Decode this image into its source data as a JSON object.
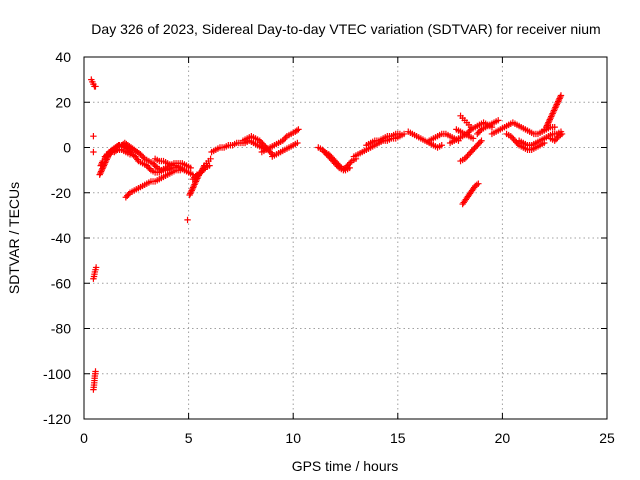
{
  "chart_data": {
    "type": "scatter",
    "title": "Day 326 of 2023, Sidereal Day-to-day VTEC variation (SDTVAR) for receiver nium",
    "xlabel": "GPS time / hours",
    "ylabel": "SDTVAR / TECUs",
    "xlim": [
      0,
      25
    ],
    "ylim": [
      -120,
      40
    ],
    "xticks": [
      0,
      5,
      10,
      15,
      20,
      25
    ],
    "yticks": [
      -120,
      -100,
      -80,
      -60,
      -40,
      -20,
      0,
      20,
      40
    ],
    "grid": true,
    "marker": "+",
    "color": "#ff0000",
    "series": [
      {
        "name": "SDTVAR",
        "segments": [
          {
            "x": [
              0.35,
              0.4,
              0.45,
              0.5,
              0.55
            ],
            "y": [
              30,
              29,
              28,
              27,
              27
            ]
          },
          {
            "x": [
              0.45
            ],
            "y": [
              5
            ]
          },
          {
            "x": [
              0.45
            ],
            "y": [
              -2
            ]
          },
          {
            "x": [
              0.45,
              0.48,
              0.5,
              0.52,
              0.55,
              0.58
            ],
            "y": [
              -58,
              -57,
              -56,
              -55,
              -54,
              -53
            ]
          },
          {
            "x": [
              0.45,
              0.48,
              0.5,
              0.52,
              0.55
            ],
            "y": [
              -107,
              -105,
              -103,
              -101,
              -99
            ]
          },
          {
            "x": [
              0.75,
              0.85,
              0.95,
              1.05,
              1.15,
              1.25,
              1.4,
              1.55,
              1.7,
              1.85,
              2.0,
              2.15,
              2.3,
              2.45,
              2.6,
              2.8,
              3.0,
              3.2,
              3.4,
              3.6,
              3.8,
              4.0,
              4.2,
              4.4,
              4.6,
              4.8,
              5.0,
              5.2
            ],
            "y": [
              -12,
              -10,
              -8,
              -6,
              -4,
              -3,
              -1,
              0,
              1,
              1,
              0,
              -1,
              -3,
              -4,
              -6,
              -7,
              -8,
              -10,
              -11,
              -11,
              -10,
              -10,
              -9,
              -9,
              -9,
              -10,
              -11,
              -12
            ]
          },
          {
            "x": [
              0.8,
              0.9,
              1.0,
              1.1,
              1.2,
              1.35,
              1.5,
              1.65,
              1.8,
              1.95,
              2.1,
              2.25,
              2.4,
              2.55,
              2.7,
              2.9,
              3.1,
              3.3,
              3.5,
              3.7,
              3.9,
              4.1,
              4.3,
              4.5,
              4.7,
              4.9,
              5.1
            ],
            "y": [
              -8,
              -6,
              -5,
              -3,
              -2,
              -1,
              0,
              1,
              1,
              2,
              1,
              0,
              -1,
              -2,
              -3,
              -5,
              -6,
              -7,
              -9,
              -10,
              -9,
              -8,
              -7,
              -7,
              -7,
              -8,
              -9
            ]
          },
          {
            "x": [
              1.0,
              1.15,
              1.3,
              1.45,
              1.6,
              1.8,
              2.0,
              2.2
            ],
            "y": [
              -4,
              -3,
              -2,
              -2,
              -1,
              -1,
              -2,
              -3
            ]
          },
          {
            "x": [
              2.0,
              2.2,
              2.4,
              2.6,
              2.8,
              3.0,
              3.2,
              3.4,
              3.6,
              3.8,
              4.0,
              4.2,
              4.4,
              4.6
            ],
            "y": [
              -22,
              -20,
              -19,
              -18,
              -17,
              -16,
              -15,
              -15,
              -14,
              -13,
              -12,
              -11,
              -10,
              -10
            ]
          },
          {
            "x": [
              3.4,
              3.6,
              3.8,
              4.0,
              4.2,
              4.4,
              4.6,
              4.8
            ],
            "y": [
              -5,
              -6,
              -6,
              -7,
              -8,
              -8,
              -9,
              -10
            ]
          },
          {
            "x": [
              5.05,
              5.15,
              5.25,
              5.35,
              5.45,
              5.55,
              5.65,
              5.75,
              5.85,
              5.95,
              6.05
            ],
            "y": [
              -21,
              -19,
              -17,
              -15,
              -13,
              -11,
              -10,
              -8,
              -7,
              -6,
              -5
            ]
          },
          {
            "x": [
              5.2,
              5.4,
              5.6,
              5.8,
              6.0
            ],
            "y": [
              -14,
              -12,
              -11,
              -9,
              -8
            ]
          },
          {
            "x": [
              4.95
            ],
            "y": [
              -32
            ]
          },
          {
            "x": [
              6.1,
              6.3,
              6.5,
              6.7,
              6.9,
              7.1,
              7.3,
              7.5,
              7.7,
              7.9,
              8.1,
              8.3,
              8.5,
              8.7
            ],
            "y": [
              -2,
              -1,
              0,
              0,
              1,
              1,
              2,
              2,
              2,
              3,
              2,
              1,
              0,
              -1
            ]
          },
          {
            "x": [
              7.6,
              7.8,
              8.0,
              8.2,
              8.4,
              8.6,
              8.8,
              9.0
            ],
            "y": [
              3,
              4,
              5,
              4,
              3,
              1,
              -1,
              -3
            ]
          },
          {
            "x": [
              8.5,
              8.7,
              8.9,
              9.1,
              9.3,
              9.5,
              9.7,
              9.9,
              10.1,
              10.25
            ],
            "y": [
              -2,
              -1,
              0,
              1,
              2,
              3,
              5,
              6,
              7,
              8
            ]
          },
          {
            "x": [
              9.0,
              9.2,
              9.4,
              9.6,
              9.8,
              10.0,
              10.2
            ],
            "y": [
              -4,
              -3,
              -2,
              -1,
              0,
              1,
              2
            ]
          },
          {
            "x": [
              11.2,
              11.4,
              11.6,
              11.8,
              12.0,
              12.2,
              12.4,
              12.6,
              12.8,
              13.0
            ],
            "y": [
              0,
              -1,
              -3,
              -5,
              -7,
              -9,
              -10,
              -8,
              -6,
              -5
            ]
          },
          {
            "x": [
              11.5,
              11.7,
              11.9,
              12.1,
              12.3,
              12.5,
              12.7
            ],
            "y": [
              -2,
              -3,
              -5,
              -7,
              -9,
              -10,
              -9
            ]
          },
          {
            "x": [
              12.9,
              13.1,
              13.3,
              13.5,
              13.7,
              13.9,
              14.1,
              14.3,
              14.5,
              14.7,
              14.9,
              15.1,
              15.3
            ],
            "y": [
              -4,
              -3,
              -2,
              -1,
              0,
              1,
              2,
              3,
              3,
              4,
              4,
              5,
              6
            ]
          },
          {
            "x": [
              13.5,
              13.7,
              13.9,
              14.1,
              14.3,
              14.5,
              14.7,
              14.9,
              15.1
            ],
            "y": [
              1,
              2,
              3,
              3,
              4,
              5,
              5,
              6,
              6
            ]
          },
          {
            "x": [
              15.5,
              15.7,
              15.9,
              16.1,
              16.3,
              16.5,
              16.7,
              16.9,
              17.1
            ],
            "y": [
              7,
              6,
              5,
              4,
              3,
              2,
              1,
              0,
              1
            ]
          },
          {
            "x": [
              16.5,
              16.7,
              16.9,
              17.1,
              17.3,
              17.5,
              17.7,
              17.9
            ],
            "y": [
              3,
              4,
              5,
              6,
              6,
              5,
              4,
              3
            ]
          },
          {
            "x": [
              17.5,
              17.7,
              17.9,
              18.1,
              18.3,
              18.5,
              18.7,
              18.9,
              19.1,
              19.3,
              19.5
            ],
            "y": [
              2,
              3,
              4,
              5,
              6,
              8,
              9,
              10,
              11,
              10,
              9
            ]
          },
          {
            "x": [
              17.8,
              18.0,
              18.2,
              18.4,
              18.6
            ],
            "y": [
              8,
              7,
              6,
              5,
              4
            ]
          },
          {
            "x": [
              18.0,
              18.1,
              18.2,
              18.3,
              18.4,
              18.5
            ],
            "y": [
              14,
              13,
              12,
              11,
              10,
              9
            ]
          },
          {
            "x": [
              18.0,
              18.2,
              18.4,
              18.6,
              18.8,
              19.0
            ],
            "y": [
              -6,
              -5,
              -3,
              -1,
              1,
              3
            ]
          },
          {
            "x": [
              18.1,
              18.25,
              18.4,
              18.55,
              18.7,
              18.85
            ],
            "y": [
              -25,
              -23,
              -21,
              -19,
              -17,
              -16
            ]
          },
          {
            "x": [
              18.8,
              19.0,
              19.2,
              19.4,
              19.6,
              19.8
            ],
            "y": [
              6,
              8,
              9,
              10,
              11,
              12
            ]
          },
          {
            "x": [
              19.5,
              19.7,
              19.9,
              20.1,
              20.3,
              20.5,
              20.7,
              20.9,
              21.1,
              21.3,
              21.5,
              21.7,
              21.9,
              22.1,
              22.3,
              22.5
            ],
            "y": [
              6,
              7,
              8,
              9,
              10,
              11,
              10,
              9,
              8,
              7,
              6,
              6,
              7,
              8,
              9,
              9
            ]
          },
          {
            "x": [
              20.2,
              20.4,
              20.6,
              20.8,
              21.0,
              21.2,
              21.4,
              21.6,
              21.8,
              22.0
            ],
            "y": [
              6,
              5,
              3,
              1,
              0,
              -1,
              -1,
              0,
              1,
              2
            ]
          },
          {
            "x": [
              20.8,
              21.0,
              21.2,
              21.4,
              21.6,
              21.8,
              22.0,
              22.2,
              22.4,
              22.6,
              22.8
            ],
            "y": [
              3,
              2,
              1,
              1,
              2,
              3,
              4,
              5,
              6,
              6,
              7
            ]
          },
          {
            "x": [
              22.0,
              22.1,
              22.2,
              22.3,
              22.4,
              22.5,
              22.6,
              22.7,
              22.8
            ],
            "y": [
              8,
              9,
              11,
              13,
              15,
              17,
              19,
              21,
              23
            ]
          },
          {
            "x": [
              22.3,
              22.5,
              22.7,
              22.85
            ],
            "y": [
              4,
              3,
              5,
              6
            ]
          }
        ]
      }
    ]
  }
}
